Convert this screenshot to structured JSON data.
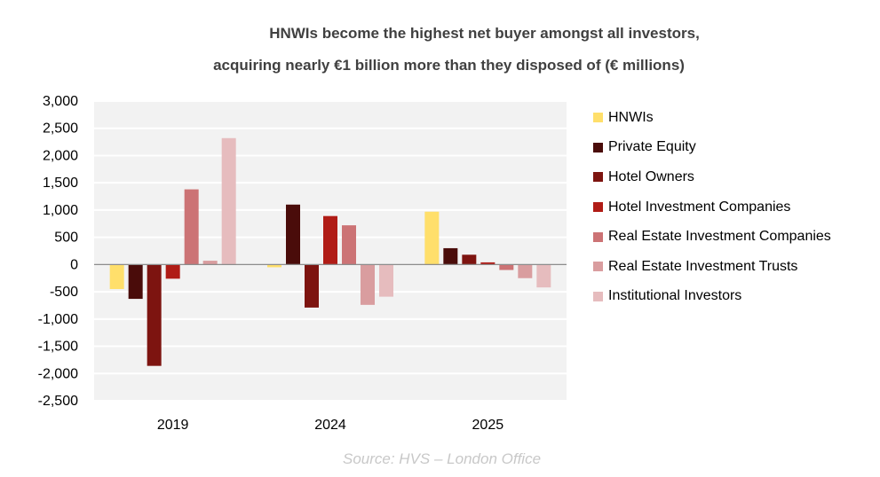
{
  "chart_data": {
    "type": "bar",
    "title": "HNWIs become the highest net buyer amongst all investors,",
    "subtitle": "acquiring nearly €1 billion more than they disposed of (€ millions)",
    "xlabel": "",
    "ylabel": "",
    "categories": [
      "2019",
      "2024",
      "2025"
    ],
    "ylim": [
      -2500,
      3000
    ],
    "yticks": [
      3000,
      2500,
      2000,
      1500,
      1000,
      500,
      0,
      -500,
      -1000,
      -1500,
      -2000,
      -2500
    ],
    "ytick_labels": [
      "3,000",
      "2,500",
      "2,000",
      "1,500",
      "1,000",
      "500",
      "0",
      "-500",
      "-1,000",
      "-1,500",
      "-2,000",
      "-2,500"
    ],
    "grid": true,
    "legend_position": "right",
    "series": [
      {
        "name": "HNWIs",
        "color": "#ffdf6b",
        "values": [
          -450,
          -50,
          970
        ]
      },
      {
        "name": "Private Equity",
        "color": "#4a0c0a",
        "values": [
          -630,
          1100,
          300
        ]
      },
      {
        "name": "Hotel Owners",
        "color": "#7d1410",
        "values": [
          -1860,
          -790,
          180
        ]
      },
      {
        "name": "Hotel Investment Companies",
        "color": "#b01c16",
        "values": [
          -260,
          890,
          40
        ]
      },
      {
        "name": "Real Estate Investment Companies",
        "color": "#cc7375",
        "values": [
          1380,
          720,
          -100
        ]
      },
      {
        "name": "Real Estate Investment Trusts",
        "color": "#d99d9f",
        "values": [
          70,
          -740,
          -250
        ]
      },
      {
        "name": "Institutional Investors",
        "color": "#e6bcbe",
        "values": [
          2320,
          -590,
          -420
        ]
      }
    ]
  },
  "source": "Source: HVS – London Office"
}
